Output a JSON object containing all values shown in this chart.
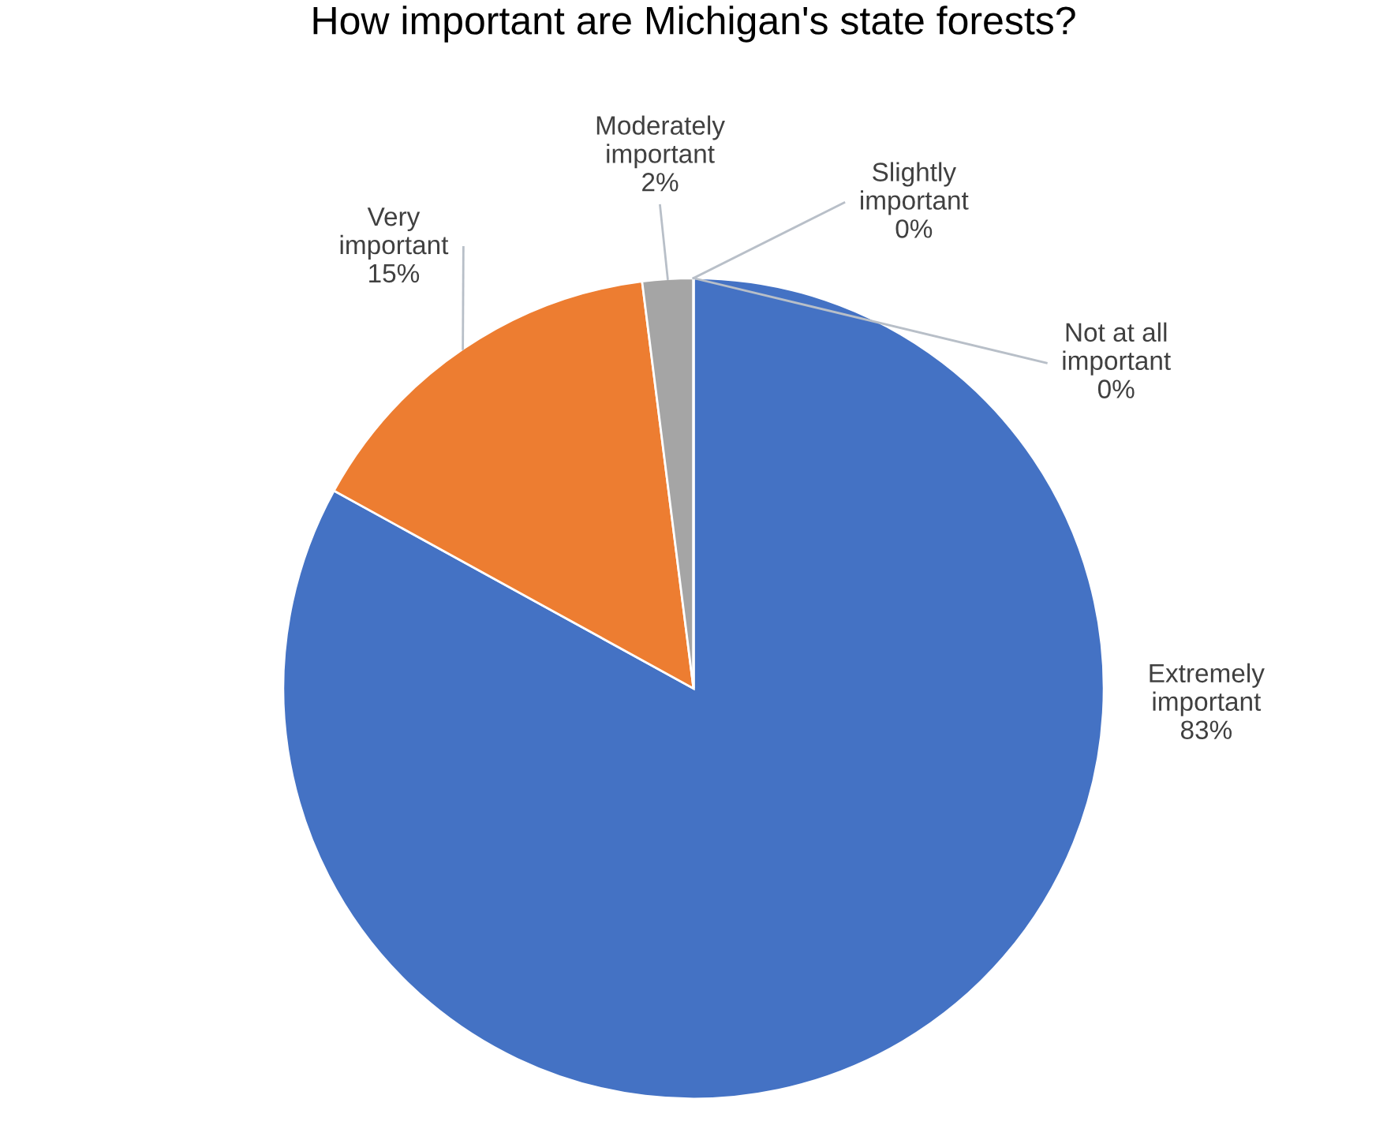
{
  "chart_data": {
    "type": "pie",
    "title": "How important are Michigan's state forests?",
    "categories": [
      "Extremely\nimportant",
      "Very\nimportant",
      "Moderately\nimportant",
      "Slightly\nimportant",
      "Not at all\nimportant"
    ],
    "values": [
      83,
      15,
      2,
      0,
      0
    ],
    "value_labels": [
      "83%",
      "15%",
      "2%",
      "0%",
      "0%"
    ],
    "colors": [
      "#4472c4",
      "#ed7d31",
      "#a5a5a5",
      "#ffc000",
      "#5b9bd5"
    ],
    "legend": false
  }
}
